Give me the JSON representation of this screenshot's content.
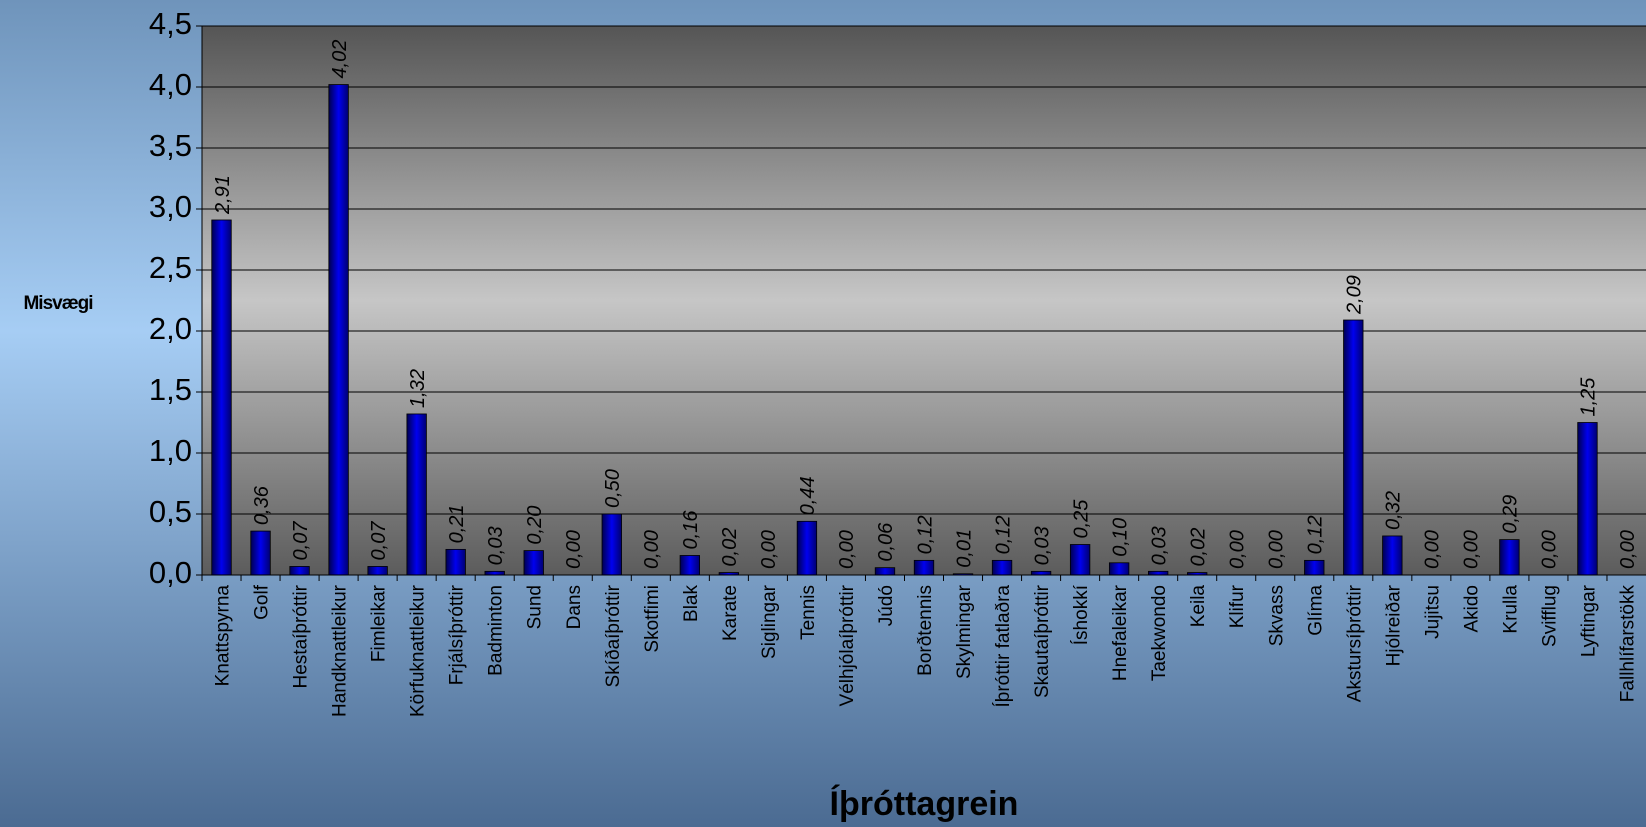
{
  "chart_data": {
    "type": "bar",
    "y_label": "Misvægi",
    "x_label": "Íþróttagrein",
    "categories": [
      "Knattspyrna",
      "Golf",
      "Hestaíþróttir",
      "Handknattleikur",
      "Fimleikar",
      "Körfuknattleikur",
      "Frjálsíþróttir",
      "Badminton",
      "Sund",
      "Dans",
      "Skíðaíþróttir",
      "Skotfimi",
      "Blak",
      "Karate",
      "Siglingar",
      "Tennis",
      "Vélhjólaíþróttir",
      "Júdó",
      "Borðtennis",
      "Skylmingar",
      "Íþróttir fatlaðra",
      "Skautaíþróttir",
      "Íshokkí",
      "Hnefaleikar",
      "Taekwondo",
      "Keila",
      "Klifur",
      "Skvass",
      "Glíma",
      "Akstursíþróttir",
      "Hjólreiðar",
      "Jujitsu",
      "Akido",
      "Krulla",
      "Svifflug",
      "Lyftingar",
      "Fallhlífarstökk"
    ],
    "values": [
      2.91,
      0.36,
      0.07,
      4.02,
      0.07,
      1.32,
      0.21,
      0.03,
      0.2,
      0.0,
      0.5,
      0.0,
      0.16,
      0.02,
      0.0,
      0.44,
      0.0,
      0.06,
      0.12,
      0.01,
      0.12,
      0.03,
      0.25,
      0.1,
      0.03,
      0.02,
      0.0,
      0.0,
      0.12,
      2.09,
      0.32,
      0.0,
      0.0,
      0.29,
      0.0,
      1.25,
      0.0
    ],
    "value_labels": [
      "2,91",
      "0,36",
      "0,07",
      "4,02",
      "0,07",
      "1,32",
      "0,21",
      "0,03",
      "0,20",
      "0,00",
      "0,50",
      "0,00",
      "0,16",
      "0,02",
      "0,00",
      "0,44",
      "0,00",
      "0,06",
      "0,12",
      "0,01",
      "0,12",
      "0,03",
      "0,25",
      "0,10",
      "0,03",
      "0,02",
      "0,00",
      "0,00",
      "0,12",
      "2,09",
      "0,32",
      "0,00",
      "0,00",
      "0,29",
      "0,00",
      "1,25",
      "0,00"
    ],
    "color": "#0000ee",
    "ylim": [
      0,
      4.5
    ],
    "yticks": [
      {
        "value": 0,
        "label": "0,0"
      },
      {
        "value": 0.5,
        "label": "0,5"
      },
      {
        "value": 1,
        "label": "1,0"
      },
      {
        "value": 1.5,
        "label": "1,5"
      },
      {
        "value": 2,
        "label": "2,0"
      },
      {
        "value": 2.5,
        "label": "2,5"
      },
      {
        "value": 3,
        "label": "3,0"
      },
      {
        "value": 3.5,
        "label": "3,5"
      },
      {
        "value": 4,
        "label": "4,0"
      },
      {
        "value": 4.5,
        "label": "4,5"
      }
    ],
    "grid": true
  }
}
